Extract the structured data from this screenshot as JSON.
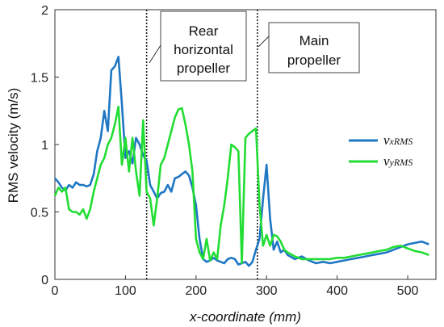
{
  "chart_data": {
    "type": "line",
    "xlabel": "x-coordinate (mm)",
    "ylabel": "RMS velocity (m/s)",
    "xlim": [
      0,
      540
    ],
    "ylim": [
      0,
      2
    ],
    "xticks": [
      "0",
      "100",
      "200",
      "300",
      "400",
      "500"
    ],
    "yticks": [
      "0",
      "0.5",
      "1",
      "1.5",
      "2"
    ],
    "grid": false,
    "legend_position": "right",
    "series": [
      {
        "name": "vxRMS",
        "name_symbol": "v",
        "name_subscript": "xRMS",
        "color": "#1f77c4",
        "x": [
          0,
          5,
          10,
          15,
          20,
          25,
          30,
          35,
          40,
          45,
          50,
          55,
          60,
          65,
          70,
          75,
          80,
          85,
          90,
          95,
          100,
          105,
          110,
          115,
          120,
          125,
          130,
          135,
          140,
          145,
          150,
          155,
          160,
          165,
          170,
          175,
          180,
          185,
          190,
          195,
          200,
          205,
          210,
          215,
          220,
          225,
          230,
          235,
          240,
          245,
          250,
          255,
          260,
          265,
          270,
          275,
          280,
          285,
          290,
          295,
          300,
          305,
          310,
          315,
          320,
          325,
          330,
          340,
          350,
          360,
          370,
          380,
          390,
          400,
          410,
          420,
          430,
          440,
          450,
          460,
          470,
          480,
          490,
          500,
          510,
          520,
          530
        ],
        "y": [
          0.75,
          0.72,
          0.68,
          0.66,
          0.7,
          0.68,
          0.72,
          0.7,
          0.7,
          0.69,
          0.7,
          0.78,
          0.95,
          1.05,
          1.25,
          1.1,
          1.55,
          1.58,
          1.65,
          1.3,
          0.9,
          0.95,
          0.86,
          1.05,
          1.0,
          0.92,
          0.88,
          0.7,
          0.65,
          0.6,
          0.64,
          0.65,
          0.7,
          0.65,
          0.75,
          0.76,
          0.78,
          0.8,
          0.77,
          0.68,
          0.55,
          0.3,
          0.15,
          0.13,
          0.14,
          0.16,
          0.14,
          0.13,
          0.12,
          0.15,
          0.16,
          0.15,
          0.11,
          0.12,
          0.13,
          0.1,
          0.13,
          0.22,
          0.3,
          0.6,
          0.85,
          0.45,
          0.22,
          0.28,
          0.2,
          0.22,
          0.18,
          0.15,
          0.17,
          0.14,
          0.12,
          0.13,
          0.12,
          0.13,
          0.14,
          0.15,
          0.16,
          0.17,
          0.18,
          0.19,
          0.2,
          0.22,
          0.24,
          0.26,
          0.27,
          0.28,
          0.26
        ]
      },
      {
        "name": "vyRMS",
        "name_symbol": "v",
        "name_subscript": "yRMS",
        "color": "#22dd33",
        "x": [
          0,
          5,
          10,
          15,
          20,
          25,
          30,
          35,
          40,
          45,
          50,
          55,
          60,
          65,
          70,
          75,
          80,
          85,
          90,
          95,
          100,
          105,
          110,
          115,
          120,
          125,
          130,
          135,
          140,
          145,
          150,
          155,
          160,
          165,
          170,
          175,
          180,
          185,
          190,
          195,
          200,
          205,
          210,
          215,
          220,
          225,
          230,
          235,
          240,
          245,
          250,
          255,
          260,
          265,
          270,
          275,
          280,
          285,
          290,
          295,
          300,
          305,
          310,
          315,
          320,
          325,
          330,
          340,
          350,
          360,
          370,
          380,
          390,
          400,
          410,
          420,
          430,
          440,
          450,
          460,
          470,
          480,
          490,
          500,
          510,
          520,
          530
        ],
        "y": [
          0.62,
          0.68,
          0.65,
          0.68,
          0.52,
          0.5,
          0.5,
          0.48,
          0.52,
          0.45,
          0.52,
          0.65,
          0.75,
          0.85,
          0.9,
          1.0,
          1.05,
          1.15,
          1.28,
          0.85,
          1.05,
          0.8,
          1.05,
          0.8,
          0.62,
          1.18,
          0.65,
          0.6,
          0.4,
          0.6,
          0.85,
          0.9,
          1.0,
          1.1,
          1.2,
          1.26,
          1.27,
          1.15,
          1.0,
          0.8,
          0.3,
          0.2,
          0.15,
          0.3,
          0.14,
          0.2,
          0.15,
          0.4,
          0.55,
          0.75,
          1.0,
          0.98,
          0.95,
          0.12,
          1.05,
          1.08,
          1.1,
          1.12,
          0.55,
          0.25,
          0.33,
          0.25,
          0.33,
          0.32,
          0.28,
          0.22,
          0.2,
          0.17,
          0.15,
          0.15,
          0.15,
          0.15,
          0.15,
          0.16,
          0.16,
          0.17,
          0.18,
          0.19,
          0.2,
          0.21,
          0.22,
          0.24,
          0.25,
          0.23,
          0.21,
          0.2,
          0.18
        ]
      }
    ],
    "vlines": [
      {
        "x": 130,
        "label_lines": [
          "Rear",
          "horizontal",
          "propeller"
        ]
      },
      {
        "x": 287,
        "label_lines": [
          "Main",
          "propeller"
        ]
      }
    ]
  }
}
